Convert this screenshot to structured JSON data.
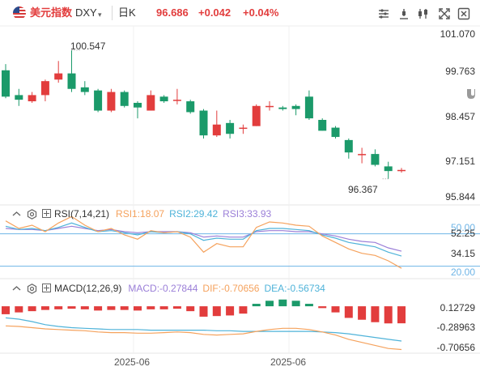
{
  "header": {
    "name": "美元指数",
    "symbol": "DXY",
    "caret": "▾",
    "period": "日K",
    "price": "96.686",
    "change": "+0.042",
    "change_pct": "+0.04%"
  },
  "toolbar_icons": [
    "indicator-settings-icon",
    "drawing-icon",
    "compare-icon",
    "fullscreen-icon",
    "screenshot-icon"
  ],
  "colors": {
    "up": "#e23d3d",
    "down": "#1b9a6a",
    "rsi1": "#f5a25d",
    "rsi2": "#4fb3d9",
    "rsi3": "#9b7fd8",
    "macd": "#9b7fd8",
    "dif": "#f5a25d",
    "dea": "#4fb3d9",
    "band": "#6eb4e6"
  },
  "main_axis": {
    "ticks": [
      "101.070",
      "99.763",
      "98.457",
      "97.151",
      "95.844"
    ],
    "high_label": "100.547",
    "low_label": "96.367"
  },
  "rsi": {
    "title": "RSI(7,14,21)",
    "rsi1": "RSI1:18.07",
    "rsi2": "RSI2:29.42",
    "rsi3": "RSI3:33.93",
    "ticks": [
      "52.25",
      "34.15"
    ],
    "band_labels": [
      "50.00",
      "20.00"
    ]
  },
  "macd": {
    "title": "MACD(12,26,9)",
    "macd": "MACD:-0.27844",
    "dif": "DIF:-0.70656",
    "dea": "DEA:-0.56734",
    "ticks": [
      "0.12729",
      "-0.28963",
      "-0.70656"
    ]
  },
  "x_axis": {
    "labels": [
      "2025-06",
      "2025-06"
    ]
  },
  "chart_data": {
    "type": "candlestick",
    "y_range": [
      95.844,
      101.07
    ],
    "candles": [
      [
        99.9,
        99.05,
        100.1,
        99.0
      ],
      [
        99.1,
        98.95,
        99.3,
        98.75
      ],
      [
        98.9,
        99.1,
        99.2,
        98.85
      ],
      [
        99.1,
        99.55,
        99.6,
        98.9
      ],
      [
        99.6,
        99.8,
        100.2,
        99.5
      ],
      [
        99.8,
        99.3,
        100.547,
        99.2
      ],
      [
        99.35,
        99.2,
        99.55,
        99.1
      ],
      [
        99.25,
        98.6,
        99.3,
        98.55
      ],
      [
        98.6,
        99.2,
        99.3,
        98.55
      ],
      [
        99.2,
        98.75,
        99.25,
        98.7
      ],
      [
        98.85,
        98.7,
        98.9,
        98.35
      ],
      [
        98.6,
        99.1,
        99.25,
        98.6
      ],
      [
        99.05,
        98.9,
        99.1,
        98.85
      ],
      [
        98.95,
        98.95,
        99.3,
        98.8
      ],
      [
        98.9,
        98.55,
        98.95,
        98.5
      ],
      [
        98.6,
        97.8,
        98.65,
        97.7
      ],
      [
        97.8,
        98.15,
        98.6,
        97.75
      ],
      [
        98.2,
        97.85,
        98.3,
        97.7
      ],
      [
        98.05,
        98.05,
        98.15,
        97.85
      ],
      [
        98.1,
        98.75,
        98.8,
        98.1
      ],
      [
        98.75,
        98.75,
        98.9,
        98.6
      ],
      [
        98.7,
        98.65,
        98.75,
        98.6
      ],
      [
        98.75,
        98.65,
        98.8,
        98.45
      ],
      [
        99.05,
        98.35,
        99.25,
        98.3
      ],
      [
        98.3,
        97.95,
        98.35,
        97.95
      ],
      [
        98.05,
        97.75,
        98.1,
        97.7
      ],
      [
        97.65,
        97.25,
        97.7,
        97.05
      ],
      [
        97.2,
        97.2,
        97.4,
        96.9
      ],
      [
        97.2,
        96.85,
        97.35,
        96.8
      ],
      [
        96.8,
        96.65,
        96.95,
        96.4
      ],
      [
        96.65,
        96.686,
        96.75,
        96.6
      ]
    ],
    "rsi1": [
      62,
      55,
      58,
      52,
      60,
      66,
      58,
      52,
      55,
      49,
      45,
      53,
      51,
      52,
      47,
      33,
      41,
      38,
      38,
      56,
      61,
      60,
      58,
      57,
      48,
      42,
      36,
      32,
      30,
      25,
      18.07
    ],
    "rsi2": [
      57,
      54,
      55,
      53,
      56,
      60,
      56,
      52,
      53,
      51,
      49,
      52,
      51,
      52,
      50,
      44,
      46,
      45,
      45,
      53,
      55,
      55,
      54,
      53,
      49,
      46,
      42,
      40,
      38,
      33,
      29.42
    ],
    "rsi3": [
      55,
      54,
      54,
      53,
      55,
      57,
      55,
      53,
      54,
      52,
      51,
      52,
      52,
      52,
      51,
      47,
      48,
      47,
      47,
      52,
      53,
      53,
      52,
      52,
      50,
      48,
      45,
      43,
      42,
      37,
      33.93
    ],
    "macd_hist": [
      -0.13,
      -0.1,
      -0.08,
      -0.06,
      -0.05,
      -0.04,
      -0.05,
      -0.07,
      -0.06,
      -0.06,
      -0.07,
      -0.05,
      -0.05,
      -0.04,
      -0.08,
      -0.17,
      -0.16,
      -0.15,
      -0.12,
      0.04,
      0.09,
      0.11,
      0.09,
      0.04,
      -0.03,
      -0.1,
      -0.19,
      -0.22,
      -0.26,
      -0.28,
      -0.27844
    ],
    "dif": [
      -0.32,
      -0.33,
      -0.35,
      -0.37,
      -0.38,
      -0.39,
      -0.4,
      -0.42,
      -0.43,
      -0.43,
      -0.44,
      -0.44,
      -0.43,
      -0.42,
      -0.43,
      -0.46,
      -0.47,
      -0.46,
      -0.45,
      -0.41,
      -0.38,
      -0.36,
      -0.36,
      -0.38,
      -0.42,
      -0.47,
      -0.54,
      -0.59,
      -0.64,
      -0.69,
      -0.70656
    ],
    "dea": [
      -0.19,
      -0.21,
      -0.25,
      -0.3,
      -0.33,
      -0.35,
      -0.36,
      -0.37,
      -0.38,
      -0.38,
      -0.38,
      -0.39,
      -0.39,
      -0.39,
      -0.39,
      -0.39,
      -0.4,
      -0.4,
      -0.41,
      -0.41,
      -0.41,
      -0.41,
      -0.41,
      -0.41,
      -0.42,
      -0.43,
      -0.45,
      -0.48,
      -0.51,
      -0.54,
      -0.56734
    ]
  }
}
